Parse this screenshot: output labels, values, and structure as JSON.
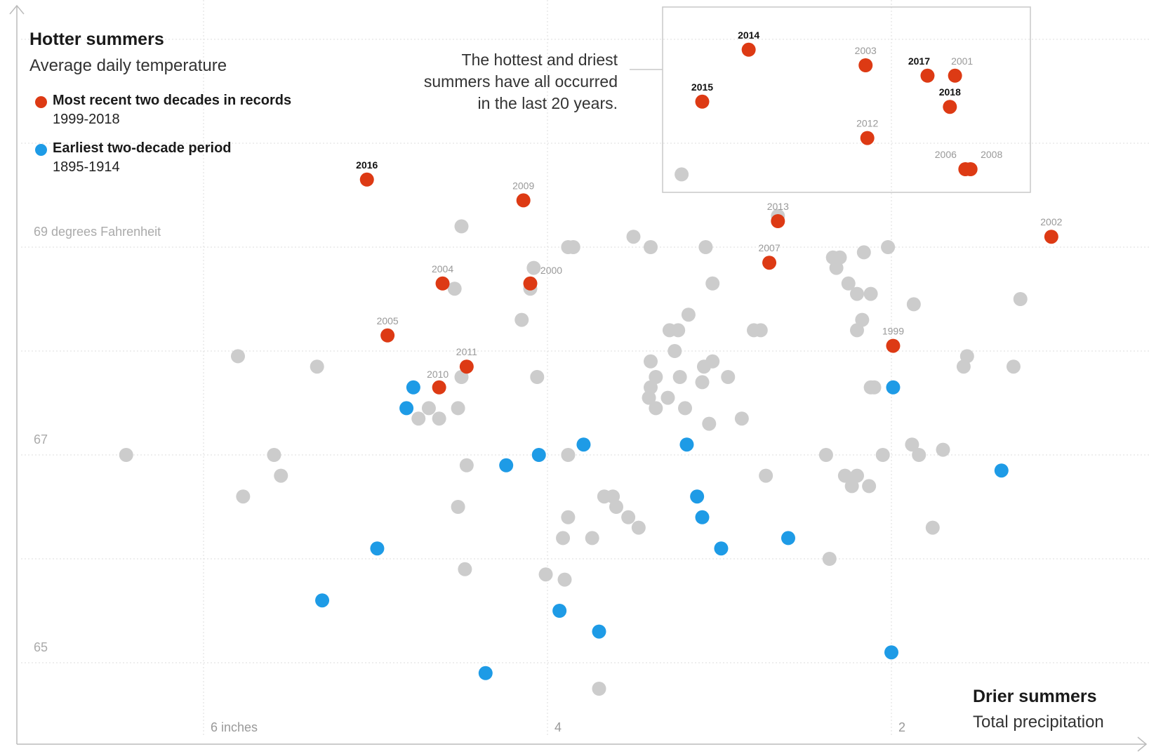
{
  "colors": {
    "recent": "#dd3a14",
    "earliest": "#1e9be6",
    "other": "#cccccc",
    "grid": "#dddddd",
    "axis": "#bbbbbb"
  },
  "titles": {
    "y_title": "Hotter summers",
    "y_subtitle": "Average daily temperature",
    "x_title": "Drier summers",
    "x_subtitle": "Total precipitation"
  },
  "legend": [
    {
      "name": "Most recent two decades in records",
      "range": "1999-2018",
      "color": "#dd3a14"
    },
    {
      "name": "Earliest two-decade period",
      "range": "1895-1914",
      "color": "#1e9be6"
    }
  ],
  "annotation": {
    "lines": [
      "The hottest and driest",
      "summers have all occurred",
      "in the last 20 years."
    ]
  },
  "chart_data": {
    "type": "scatter",
    "x_axis": {
      "label": "Total precipitation",
      "reversed": true,
      "range": [
        7.0,
        0.65
      ],
      "ticks": [
        {
          "value": 6,
          "label": "6 inches"
        },
        {
          "value": 4,
          "label": "4"
        },
        {
          "value": 2,
          "label": "2"
        }
      ]
    },
    "y_axis": {
      "label": "Average daily temperature",
      "range": [
        64.5,
        71.2
      ],
      "ticks": [
        {
          "value": 69,
          "label": "69 degrees Fahrenheit"
        },
        {
          "value": 67,
          "label": "67"
        },
        {
          "value": 65,
          "label": "65"
        }
      ]
    },
    "grid": true,
    "series": [
      {
        "name": "Most recent two decades in records",
        "color": "#dd3a14",
        "points": [
          {
            "label": "2016",
            "x": 5.05,
            "y": 69.65,
            "bold": true
          },
          {
            "label": "2009",
            "x": 4.14,
            "y": 69.45
          },
          {
            "label": "2013",
            "x": 2.66,
            "y": 69.25
          },
          {
            "label": "2002",
            "x": 1.07,
            "y": 69.1
          },
          {
            "label": "2007",
            "x": 2.71,
            "y": 68.85
          },
          {
            "label": "2004",
            "x": 4.61,
            "y": 68.65
          },
          {
            "label": "2000",
            "x": 4.1,
            "y": 68.65
          },
          {
            "label": "2005",
            "x": 4.93,
            "y": 68.15
          },
          {
            "label": "1999",
            "x": 1.99,
            "y": 68.05
          },
          {
            "label": "2011",
            "x": 4.47,
            "y": 67.85
          },
          {
            "label": "2010",
            "x": 4.63,
            "y": 67.65
          },
          {
            "label": "2014",
            "x": 2.83,
            "y": 70.9,
            "bold": true
          },
          {
            "label": "2015",
            "x": 3.1,
            "y": 70.4,
            "bold": true
          },
          {
            "label": "2003",
            "x": 2.15,
            "y": 70.75
          },
          {
            "label": "2017",
            "x": 1.79,
            "y": 70.65,
            "bold": true
          },
          {
            "label": "2001",
            "x": 1.63,
            "y": 70.65
          },
          {
            "label": "2018",
            "x": 1.66,
            "y": 70.35,
            "bold": true
          },
          {
            "label": "2012",
            "x": 2.14,
            "y": 70.05
          },
          {
            "label": "2006",
            "x": 1.57,
            "y": 69.75
          },
          {
            "label": "2008",
            "x": 1.54,
            "y": 69.75
          }
        ]
      },
      {
        "name": "Earliest two-decade period",
        "color": "#1e9be6",
        "points": [
          {
            "x": 4.78,
            "y": 67.65
          },
          {
            "x": 4.82,
            "y": 67.45
          },
          {
            "x": 3.79,
            "y": 67.1
          },
          {
            "x": 3.19,
            "y": 67.1
          },
          {
            "x": 4.05,
            "y": 67.0
          },
          {
            "x": 4.24,
            "y": 66.9
          },
          {
            "x": 1.99,
            "y": 67.65
          },
          {
            "x": 1.36,
            "y": 66.85
          },
          {
            "x": 3.13,
            "y": 66.6
          },
          {
            "x": 3.1,
            "y": 66.4
          },
          {
            "x": 2.6,
            "y": 66.2
          },
          {
            "x": 2.99,
            "y": 66.1
          },
          {
            "x": 4.99,
            "y": 66.1
          },
          {
            "x": 5.31,
            "y": 65.6
          },
          {
            "x": 3.93,
            "y": 65.5
          },
          {
            "x": 3.7,
            "y": 65.3
          },
          {
            "x": 2.0,
            "y": 65.1
          },
          {
            "x": 4.36,
            "y": 64.9
          }
        ]
      },
      {
        "name": "Other years",
        "color": "#cccccc",
        "points": [
          {
            "x": 6.45,
            "y": 67.0
          },
          {
            "x": 5.8,
            "y": 67.95
          },
          {
            "x": 5.34,
            "y": 67.85
          },
          {
            "x": 5.59,
            "y": 67.0
          },
          {
            "x": 5.55,
            "y": 66.8
          },
          {
            "x": 5.77,
            "y": 66.6
          },
          {
            "x": 4.69,
            "y": 67.45
          },
          {
            "x": 4.75,
            "y": 67.35
          },
          {
            "x": 4.5,
            "y": 67.75
          },
          {
            "x": 4.52,
            "y": 67.45
          },
          {
            "x": 4.47,
            "y": 66.9
          },
          {
            "x": 4.54,
            "y": 68.6
          },
          {
            "x": 4.5,
            "y": 69.2
          },
          {
            "x": 4.1,
            "y": 68.6
          },
          {
            "x": 4.08,
            "y": 68.8
          },
          {
            "x": 4.15,
            "y": 68.3
          },
          {
            "x": 4.06,
            "y": 67.75
          },
          {
            "x": 4.52,
            "y": 66.5
          },
          {
            "x": 3.88,
            "y": 69.0
          },
          {
            "x": 3.85,
            "y": 69.0
          },
          {
            "x": 3.88,
            "y": 67.0
          },
          {
            "x": 3.22,
            "y": 69.7
          },
          {
            "x": 3.5,
            "y": 69.1
          },
          {
            "x": 3.4,
            "y": 69.0
          },
          {
            "x": 3.08,
            "y": 69.0
          },
          {
            "x": 3.04,
            "y": 68.65
          },
          {
            "x": 3.29,
            "y": 68.2
          },
          {
            "x": 3.26,
            "y": 68.0
          },
          {
            "x": 3.4,
            "y": 67.9
          },
          {
            "x": 3.37,
            "y": 67.75
          },
          {
            "x": 3.23,
            "y": 67.75
          },
          {
            "x": 3.4,
            "y": 67.65
          },
          {
            "x": 3.41,
            "y": 67.55
          },
          {
            "x": 3.3,
            "y": 67.55
          },
          {
            "x": 3.06,
            "y": 67.3
          },
          {
            "x": 3.09,
            "y": 67.85
          },
          {
            "x": 3.1,
            "y": 67.7
          },
          {
            "x": 3.37,
            "y": 67.45
          },
          {
            "x": 3.2,
            "y": 67.45
          },
          {
            "x": 2.95,
            "y": 67.75
          },
          {
            "x": 2.87,
            "y": 67.35
          },
          {
            "x": 2.66,
            "y": 69.3
          },
          {
            "x": 2.34,
            "y": 68.9
          },
          {
            "x": 2.3,
            "y": 68.9
          },
          {
            "x": 2.32,
            "y": 68.8
          },
          {
            "x": 2.25,
            "y": 68.65
          },
          {
            "x": 2.12,
            "y": 68.55
          },
          {
            "x": 2.2,
            "y": 68.55
          },
          {
            "x": 2.17,
            "y": 68.3
          },
          {
            "x": 2.2,
            "y": 68.2
          },
          {
            "x": 2.76,
            "y": 68.2
          },
          {
            "x": 2.8,
            "y": 68.2
          },
          {
            "x": 3.04,
            "y": 67.9
          },
          {
            "x": 3.18,
            "y": 68.35
          },
          {
            "x": 3.24,
            "y": 68.2
          },
          {
            "x": 2.16,
            "y": 68.95
          },
          {
            "x": 2.02,
            "y": 69.0
          },
          {
            "x": 1.87,
            "y": 68.45
          },
          {
            "x": 1.56,
            "y": 67.95
          },
          {
            "x": 1.58,
            "y": 67.85
          },
          {
            "x": 1.7,
            "y": 67.05
          },
          {
            "x": 2.1,
            "y": 67.65
          },
          {
            "x": 2.12,
            "y": 67.65
          },
          {
            "x": 1.84,
            "y": 67.0
          },
          {
            "x": 1.88,
            "y": 67.1
          },
          {
            "x": 2.05,
            "y": 67.0
          },
          {
            "x": 2.38,
            "y": 67.0
          },
          {
            "x": 2.73,
            "y": 66.8
          },
          {
            "x": 2.27,
            "y": 66.8
          },
          {
            "x": 2.23,
            "y": 66.7
          },
          {
            "x": 2.13,
            "y": 66.7
          },
          {
            "x": 2.2,
            "y": 66.8
          },
          {
            "x": 1.76,
            "y": 66.3
          },
          {
            "x": 2.36,
            "y": 66.0
          },
          {
            "x": 3.67,
            "y": 66.6
          },
          {
            "x": 3.62,
            "y": 66.6
          },
          {
            "x": 3.47,
            "y": 66.3
          },
          {
            "x": 3.6,
            "y": 66.5
          },
          {
            "x": 3.88,
            "y": 66.4
          },
          {
            "x": 3.91,
            "y": 66.2
          },
          {
            "x": 4.48,
            "y": 65.9
          },
          {
            "x": 3.9,
            "y": 65.8
          },
          {
            "x": 4.01,
            "y": 65.85
          },
          {
            "x": 3.74,
            "y": 66.2
          },
          {
            "x": 4.63,
            "y": 67.35
          },
          {
            "x": 3.7,
            "y": 64.75
          },
          {
            "x": 1.25,
            "y": 68.5
          },
          {
            "x": 1.29,
            "y": 67.85
          },
          {
            "x": 3.53,
            "y": 66.4
          }
        ]
      }
    ],
    "annotation": "The hottest and driest summers have all occurred in the last 20 years.",
    "legend_position": "top-left"
  }
}
